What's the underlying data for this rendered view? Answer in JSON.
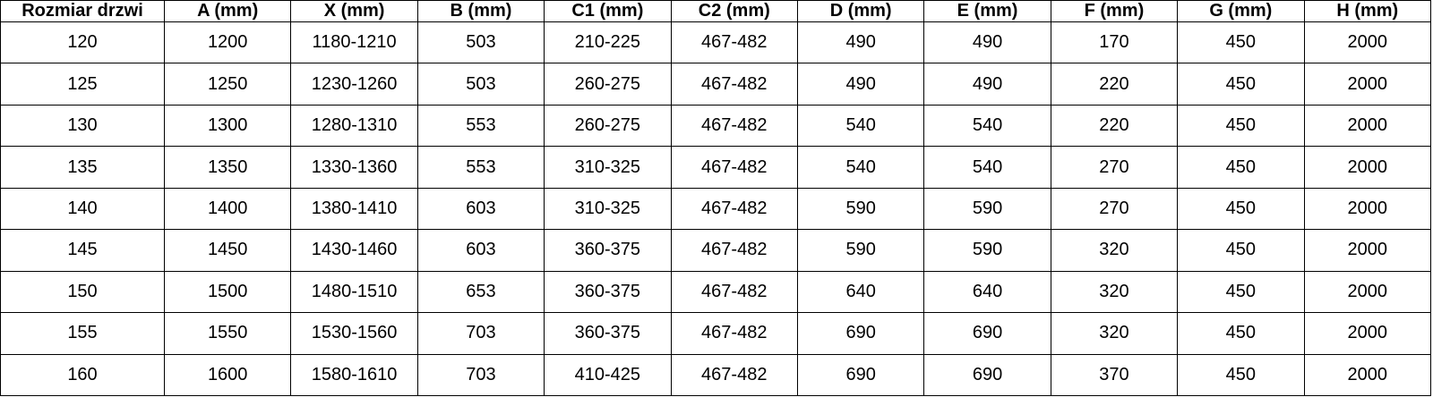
{
  "colors": {
    "background": "#ffffff",
    "text": "#000000",
    "border": "#000000"
  },
  "table": {
    "columns": [
      "Rozmiar drzwi",
      "A (mm)",
      "X (mm)",
      "B (mm)",
      "C1 (mm)",
      "C2 (mm)",
      "D (mm)",
      "E (mm)",
      "F (mm)",
      "G (mm)",
      "H (mm)"
    ],
    "rows": [
      [
        "120",
        "1200",
        "1180-1210",
        "503",
        "210-225",
        "467-482",
        "490",
        "490",
        "170",
        "450",
        "2000"
      ],
      [
        "125",
        "1250",
        "1230-1260",
        "503",
        "260-275",
        "467-482",
        "490",
        "490",
        "220",
        "450",
        "2000"
      ],
      [
        "130",
        "1300",
        "1280-1310",
        "553",
        "260-275",
        "467-482",
        "540",
        "540",
        "220",
        "450",
        "2000"
      ],
      [
        "135",
        "1350",
        "1330-1360",
        "553",
        "310-325",
        "467-482",
        "540",
        "540",
        "270",
        "450",
        "2000"
      ],
      [
        "140",
        "1400",
        "1380-1410",
        "603",
        "310-325",
        "467-482",
        "590",
        "590",
        "270",
        "450",
        "2000"
      ],
      [
        "145",
        "1450",
        "1430-1460",
        "603",
        "360-375",
        "467-482",
        "590",
        "590",
        "320",
        "450",
        "2000"
      ],
      [
        "150",
        "1500",
        "1480-1510",
        "653",
        "360-375",
        "467-482",
        "640",
        "640",
        "320",
        "450",
        "2000"
      ],
      [
        "155",
        "1550",
        "1530-1560",
        "703",
        "360-375",
        "467-482",
        "690",
        "690",
        "320",
        "450",
        "2000"
      ],
      [
        "160",
        "1600",
        "1580-1610",
        "703",
        "410-425",
        "467-482",
        "690",
        "690",
        "370",
        "450",
        "2000"
      ]
    ]
  }
}
